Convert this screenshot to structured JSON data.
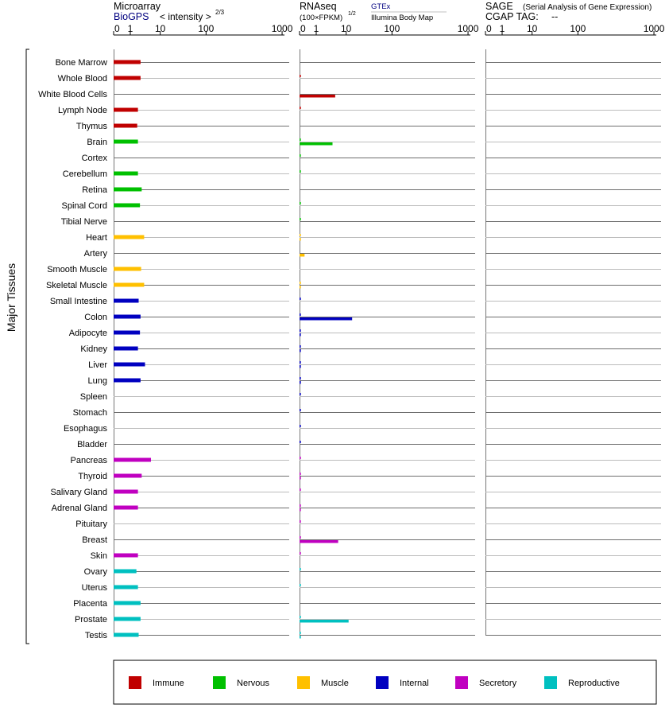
{
  "header": {
    "microarray_title": "Microarray",
    "biogps_link": "BioGPS",
    "intensity_label": "< intensity >",
    "intensity_exp": "2/3",
    "rnaseq_title": "RNAseq",
    "fpkm_label": "(100×FPKM)",
    "fpkm_exp": "1/2",
    "gtex_link": "GTEx",
    "illumina_label": "Illumina Body Map",
    "sage_title": "SAGE",
    "sage_sub": "(Serial Analysis of Gene Expression)",
    "cgap_label": "CGAP TAG:",
    "cgap_value": "--"
  },
  "chart_data": {
    "type": "bar",
    "axis_ticks": [
      "0",
      "1",
      "10",
      "100",
      "1000"
    ],
    "ylabel": "Major Tissues",
    "categories": [
      "Bone Marrow",
      "Whole Blood",
      "White Blood Cells",
      "Lymph Node",
      "Thymus",
      "Brain",
      "Cortex",
      "Cerebellum",
      "Retina",
      "Spinal Cord",
      "Tibial Nerve",
      "Heart",
      "Artery",
      "Smooth Muscle",
      "Skeletal Muscle",
      "Small Intestine",
      "Colon",
      "Adipocyte",
      "Kidney",
      "Liver",
      "Lung",
      "Spleen",
      "Stomach",
      "Esophagus",
      "Bladder",
      "Pancreas",
      "Thyroid",
      "Salivary Gland",
      "Adrenal Gland",
      "Pituitary",
      "Breast",
      "Skin",
      "Ovary",
      "Uterus",
      "Placenta",
      "Prostate",
      "Testis"
    ],
    "groups": [
      "Immune",
      "Immune",
      "Immune",
      "Immune",
      "Immune",
      "Nervous",
      "Nervous",
      "Nervous",
      "Nervous",
      "Nervous",
      "Nervous",
      "Muscle",
      "Muscle",
      "Muscle",
      "Muscle",
      "Internal",
      "Internal",
      "Internal",
      "Internal",
      "Internal",
      "Internal",
      "Internal",
      "Internal",
      "Internal",
      "Internal",
      "Secretory",
      "Secretory",
      "Secretory",
      "Secretory",
      "Secretory",
      "Secretory",
      "Secretory",
      "Reproductive",
      "Reproductive",
      "Reproductive",
      "Reproductive",
      "Reproductive"
    ],
    "colors": {
      "Immune": "#c00000",
      "Nervous": "#00c000",
      "Muscle": "#ffc000",
      "Internal": "#0000c0",
      "Secretory": "#c000c0",
      "Reproductive": "#00c0c0"
    },
    "series": [
      {
        "panel": "Microarray",
        "values": [
          2.2,
          2.2,
          null,
          1.8,
          1.7,
          1.8,
          null,
          1.8,
          2.4,
          2.1,
          null,
          2.9,
          null,
          2.3,
          2.9,
          1.9,
          2.2,
          2.1,
          1.8,
          3.1,
          2.2,
          null,
          null,
          null,
          null,
          4.9,
          2.4,
          1.8,
          1.8,
          null,
          null,
          1.8,
          1.6,
          1.8,
          2.2,
          2.2,
          1.9
        ]
      },
      {
        "panel": "RNAseq GTEx",
        "values": [
          null,
          0.01,
          null,
          0.01,
          null,
          0.01,
          0.01,
          0.01,
          null,
          0.01,
          0.01,
          0.01,
          null,
          null,
          0.01,
          0.01,
          0.02,
          0.01,
          0.01,
          0.01,
          0.01,
          0.01,
          0.01,
          0.01,
          0.01,
          0.01,
          0.01,
          0.01,
          0.01,
          0.01,
          0.02,
          0.01,
          0.01,
          0.01,
          null,
          0.02,
          0.02
        ]
      },
      {
        "panel": "RNAseq Illumina Body Map",
        "values": [
          null,
          null,
          4.3,
          null,
          null,
          3.5,
          null,
          null,
          null,
          null,
          null,
          0.01,
          0.3,
          null,
          0.01,
          null,
          13.5,
          0.01,
          0.01,
          0.01,
          0.01,
          null,
          null,
          null,
          null,
          null,
          0.01,
          null,
          0.01,
          null,
          5.4,
          null,
          null,
          null,
          null,
          11.3,
          0.01
        ]
      }
    ],
    "sage": {
      "values": []
    },
    "legend": [
      "Immune",
      "Nervous",
      "Muscle",
      "Internal",
      "Secretory",
      "Reproductive"
    ],
    "legend_position": "bottom"
  }
}
